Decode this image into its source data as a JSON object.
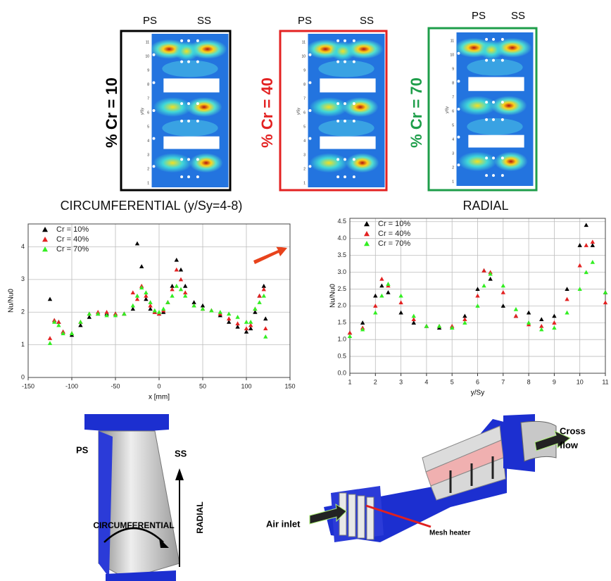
{
  "panels": [
    {
      "ps": "PS",
      "ss": "SS",
      "label": "% Cr = 10",
      "color": "#000000"
    },
    {
      "ps": "PS",
      "ss": "SS",
      "label": "% Cr = 40",
      "color": "#e32222"
    },
    {
      "ps": "PS",
      "ss": "SS",
      "label": "% Cr = 70",
      "color": "#1e9e4a"
    }
  ],
  "heatmap": {
    "ylabel": "y/Sy",
    "yticks": [
      1,
      2,
      3,
      4,
      5,
      6,
      7,
      8,
      9,
      10,
      11
    ]
  },
  "chart_data": [
    {
      "type": "scatter",
      "title": "CIRCUMFERENTIAL (y/Sy=4-8)",
      "xlabel": "x [mm]",
      "ylabel": "Nu/Nu0",
      "xlim": [
        -150,
        150
      ],
      "ylim": [
        0,
        4.7
      ],
      "xticks": [
        -150,
        -100,
        -50,
        0,
        50,
        100,
        150
      ],
      "yticks": [
        0,
        1,
        2,
        3,
        4
      ],
      "grid": true,
      "x": [
        -125,
        -120,
        -115,
        -110,
        -100,
        -90,
        -80,
        -70,
        -60,
        -50,
        -40,
        -30,
        -25,
        -20,
        -15,
        -10,
        -5,
        0,
        5,
        10,
        15,
        20,
        25,
        30,
        40,
        50,
        60,
        70,
        80,
        90,
        100,
        105,
        110,
        115,
        120,
        122
      ],
      "series": [
        {
          "name": "Cr = 10%",
          "color": "#000000",
          "values": [
            2.4,
            1.75,
            1.7,
            1.4,
            1.3,
            1.6,
            1.85,
            1.95,
            1.95,
            1.95,
            1.95,
            2.1,
            4.1,
            3.4,
            2.4,
            2.1,
            2.0,
            1.95,
            2.0,
            2.3,
            2.8,
            3.6,
            3.3,
            2.8,
            2.3,
            2.2,
            2.05,
            1.9,
            1.7,
            1.55,
            1.4,
            1.5,
            2.0,
            2.5,
            2.8,
            1.8
          ]
        },
        {
          "name": "Cr = 40%",
          "color": "#e32222",
          "values": [
            1.2,
            1.75,
            1.7,
            1.4,
            1.35,
            1.7,
            1.95,
            2.0,
            2.0,
            1.95,
            1.95,
            2.6,
            2.4,
            2.8,
            2.5,
            2.2,
            2.0,
            1.95,
            2.05,
            2.3,
            2.7,
            3.3,
            3.0,
            2.6,
            2.2,
            2.1,
            2.05,
            1.95,
            1.8,
            1.65,
            1.5,
            1.6,
            2.1,
            2.5,
            2.7,
            1.5
          ]
        },
        {
          "name": "Cr = 70%",
          "color": "#33ee22",
          "values": [
            1.05,
            1.7,
            1.6,
            1.35,
            1.35,
            1.7,
            1.95,
            1.95,
            1.9,
            1.9,
            1.95,
            2.2,
            2.5,
            2.75,
            2.6,
            2.3,
            2.05,
            2.0,
            2.1,
            2.3,
            2.5,
            2.8,
            2.7,
            2.5,
            2.2,
            2.1,
            2.05,
            2.0,
            1.95,
            1.85,
            1.7,
            1.7,
            2.1,
            2.3,
            2.5,
            1.25
          ]
        }
      ]
    },
    {
      "type": "scatter",
      "title": "RADIAL",
      "xlabel": "y/Sy",
      "ylabel": "Nu/Nu0",
      "xlim": [
        1,
        11
      ],
      "ylim": [
        0,
        4.6
      ],
      "xticks": [
        1,
        2,
        3,
        4,
        5,
        6,
        7,
        8,
        9,
        10,
        11
      ],
      "yticks": [
        {
          "value": 0,
          "label": "0.0"
        },
        0.5,
        {
          "value": 1,
          "label": "1.0"
        },
        1.5,
        {
          "value": 2,
          "label": "2.0"
        },
        2.5,
        {
          "value": 3,
          "label": "3.0"
        },
        3.5,
        {
          "value": 4,
          "label": "4.0"
        },
        4.5
      ],
      "grid": true,
      "x": [
        1,
        1.5,
        2,
        2.25,
        2.5,
        3,
        3.5,
        4,
        4.5,
        5,
        5.5,
        6,
        6.25,
        6.5,
        7,
        7.5,
        8,
        8.5,
        9,
        9.5,
        10,
        10.25,
        10.5,
        11
      ],
      "series": [
        {
          "name": "Cr = 10%",
          "color": "#000000",
          "values": [
            1.2,
            1.5,
            2.3,
            2.6,
            2.4,
            1.8,
            1.5,
            1.4,
            1.35,
            1.35,
            1.7,
            2.5,
            3.05,
            2.8,
            2.0,
            1.7,
            1.8,
            1.6,
            1.7,
            2.5,
            3.8,
            4.4,
            3.8,
            2.4
          ]
        },
        {
          "name": "Cr = 40%",
          "color": "#e32222",
          "values": [
            1.2,
            1.35,
            2.0,
            2.8,
            2.6,
            2.1,
            1.6,
            1.4,
            1.4,
            1.4,
            1.6,
            2.3,
            3.05,
            3.0,
            2.4,
            1.7,
            1.45,
            1.4,
            1.5,
            2.2,
            3.2,
            3.8,
            3.9,
            2.1
          ]
        },
        {
          "name": "Cr = 70%",
          "color": "#33ee22",
          "values": [
            1.1,
            1.3,
            1.8,
            2.3,
            2.65,
            2.3,
            1.7,
            1.4,
            1.4,
            1.35,
            1.5,
            2.0,
            2.6,
            2.95,
            2.6,
            1.9,
            1.5,
            1.3,
            1.35,
            1.8,
            2.5,
            3.0,
            3.3,
            2.4
          ]
        }
      ]
    }
  ],
  "illustration": {
    "ps": "PS",
    "ss": "SS",
    "circumferential": "CIRCUMFERENTIAL",
    "radial": "RADIAL",
    "air_inlet": "Air inlet",
    "mesh_heater": "Mesh heater",
    "cross_flow": [
      "Cross",
      "flow"
    ]
  }
}
